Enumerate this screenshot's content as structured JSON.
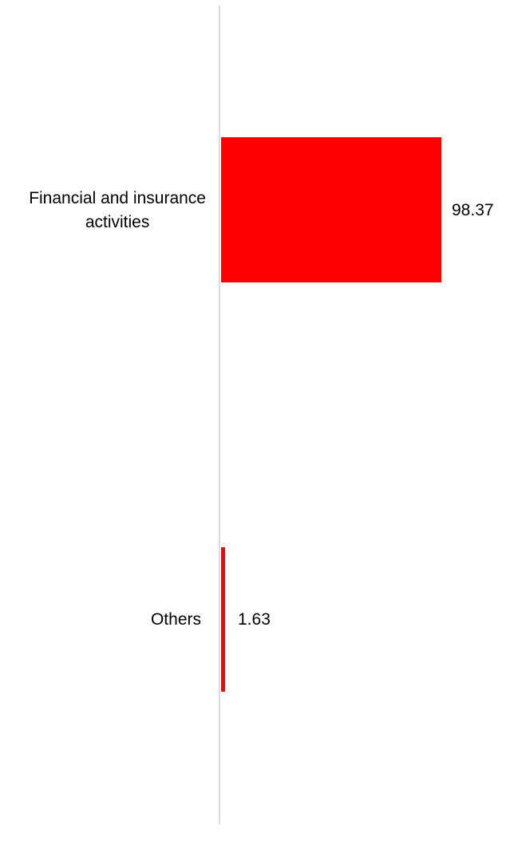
{
  "chart_data": {
    "type": "bar",
    "orientation": "horizontal",
    "title": "",
    "xlabel": "",
    "ylabel": "",
    "categories": [
      "Financial and insurance activities",
      "Others"
    ],
    "values": [
      98.37,
      1.63
    ],
    "data_labels": [
      "98.37",
      "1.63"
    ],
    "xlim": [
      0,
      100
    ],
    "grid": false,
    "legend": false,
    "bar_color": "#ff0000",
    "axis_line_color": "#dcdcdc"
  },
  "chart": {
    "bars": [
      {
        "label": "Financial and insurance activities",
        "label_lines": [
          "Financial and insurance",
          "activities"
        ],
        "value": 98.37,
        "value_label": "98.37"
      },
      {
        "label": "Others",
        "label_lines": [
          "Others"
        ],
        "value": 1.63,
        "value_label": "1.63"
      }
    ],
    "colors": {
      "bar": "#ff0000",
      "axis_line": "#dcdcdc",
      "text": "#000000",
      "background": "#ffffff"
    }
  }
}
